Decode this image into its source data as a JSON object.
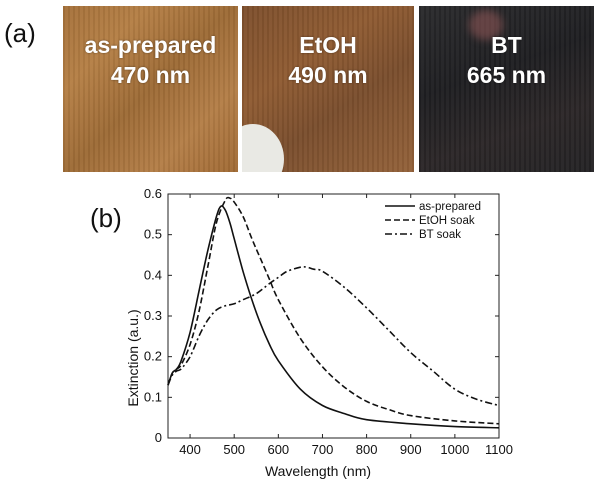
{
  "panel_labels": {
    "a": "(a)",
    "b": "(b)"
  },
  "photos": [
    {
      "line1": "as-prepared",
      "line2": "470 nm"
    },
    {
      "line1": "EtOH",
      "line2": "490 nm"
    },
    {
      "line1": "BT",
      "line2": "665 nm"
    }
  ],
  "chart_data": {
    "type": "line",
    "title": "",
    "xlabel": "Wavelength (nm)",
    "ylabel": "Extinction (a.u.)",
    "xlim": [
      350,
      1100
    ],
    "ylim": [
      0,
      0.6
    ],
    "xticks": [
      "400",
      "500",
      "600",
      "700",
      "800",
      "900",
      "1000",
      "1100"
    ],
    "yticks": [
      "0",
      "0.1",
      "0.2",
      "0.3",
      "0.4",
      "0.5",
      "0.6"
    ],
    "legend": [
      "as-prepared",
      "EtOH soak",
      "BT soak"
    ],
    "legend_position": "top-right",
    "series": [
      {
        "name": "as-prepared",
        "style": "solid",
        "x": [
          350,
          360,
          370,
          380,
          400,
          420,
          440,
          460,
          470,
          480,
          490,
          500,
          520,
          540,
          560,
          580,
          600,
          650,
          700,
          750,
          800,
          900,
          1000,
          1100
        ],
        "y": [
          0.13,
          0.16,
          0.17,
          0.19,
          0.26,
          0.36,
          0.46,
          0.545,
          0.57,
          0.56,
          0.53,
          0.49,
          0.41,
          0.34,
          0.28,
          0.23,
          0.19,
          0.12,
          0.08,
          0.06,
          0.045,
          0.035,
          0.028,
          0.025
        ]
      },
      {
        "name": "EtOH soak",
        "style": "dashed",
        "x": [
          350,
          360,
          370,
          380,
          400,
          420,
          440,
          460,
          480,
          490,
          500,
          520,
          540,
          560,
          580,
          600,
          650,
          700,
          750,
          800,
          850,
          900,
          1000,
          1100
        ],
        "y": [
          0.13,
          0.16,
          0.17,
          0.18,
          0.23,
          0.31,
          0.42,
          0.53,
          0.585,
          0.59,
          0.58,
          0.545,
          0.49,
          0.44,
          0.39,
          0.34,
          0.245,
          0.175,
          0.125,
          0.09,
          0.07,
          0.055,
          0.042,
          0.035
        ]
      },
      {
        "name": "BT soak",
        "style": "dashdot",
        "x": [
          350,
          360,
          370,
          380,
          400,
          420,
          440,
          460,
          480,
          500,
          520,
          550,
          580,
          600,
          620,
          650,
          665,
          680,
          700,
          750,
          800,
          850,
          900,
          950,
          1000,
          1050,
          1100
        ],
        "y": [
          0.13,
          0.155,
          0.165,
          0.17,
          0.2,
          0.25,
          0.29,
          0.315,
          0.325,
          0.33,
          0.34,
          0.355,
          0.38,
          0.395,
          0.41,
          0.42,
          0.42,
          0.415,
          0.41,
          0.37,
          0.32,
          0.265,
          0.21,
          0.165,
          0.12,
          0.095,
          0.08
        ]
      }
    ]
  }
}
